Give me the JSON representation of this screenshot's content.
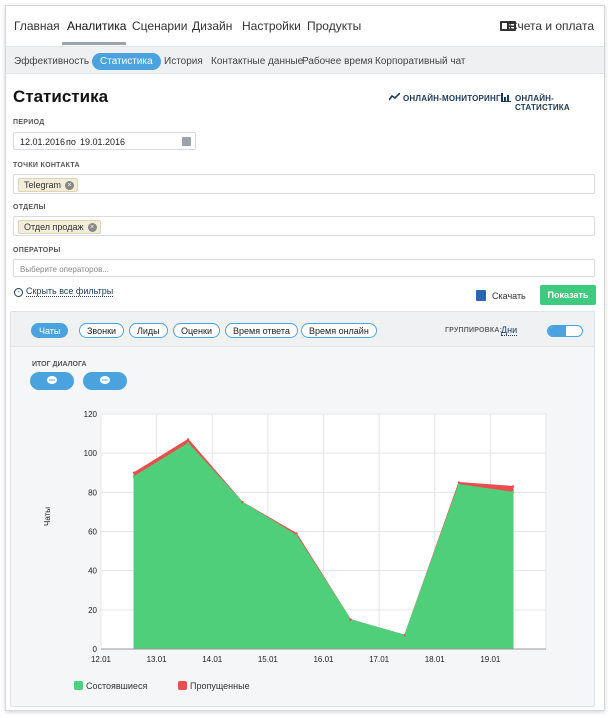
{
  "nav": {
    "items": [
      "Главная",
      "Аналитика",
      "Сценарии",
      "Дизайн",
      "Настройки",
      "Продукты"
    ],
    "active": "Аналитика",
    "billing": "Счета и оплата"
  },
  "subnav": {
    "items": [
      "Эффективность",
      "Статистика",
      "История",
      "Контактные данные",
      "Рабочее время",
      "Корпоративный чат"
    ],
    "active": "Статистика"
  },
  "page": {
    "title": "Статистика",
    "link_monitoring": "ОНЛАЙН-МОНИТОРИНГ",
    "link_stats": "ОНЛАЙН-СТАТИСТИКА"
  },
  "filters": {
    "period_label": "ПЕРИОД",
    "period_from": "12.01.2016",
    "period_to_prefix": "по",
    "period_to": "19.01.2016",
    "contacts_label": "ТОЧКИ КОНТАКТА",
    "contacts_tag": "Telegram",
    "departments_label": "ОТДЕЛЫ",
    "departments_tag": "Отдел продаж",
    "operators_label": "ОПЕРАТОРЫ",
    "operators_placeholder": "Выберите операторов...",
    "hide_filters": "Скрыть все фильтры",
    "download": "Скачать",
    "show": "Показать"
  },
  "panel": {
    "tabs": [
      "Чаты",
      "Звонки",
      "Лиды",
      "Оценки",
      "Время ответа",
      "Время онлайн"
    ],
    "active_tab": "Чаты",
    "grouping_label": "ГРУППИРОВКА:",
    "grouping_value": "Дни",
    "dialog_label": "ИТОГ ДИАЛОГА"
  },
  "chart_data": {
    "type": "area",
    "x": [
      "12.01",
      "13.01",
      "14.01",
      "15.01",
      "16.01",
      "17.01",
      "18.01",
      "19.01"
    ],
    "ylabel": "Чаты",
    "ylim": [
      0,
      120
    ],
    "yticks": [
      0,
      20,
      40,
      60,
      80,
      100,
      120
    ],
    "stacked": true,
    "grid": true,
    "legend_position": "bottom-left",
    "series": [
      {
        "name": "Состоявшиеся",
        "color": "#50cf7b",
        "values": [
          88,
          105,
          75,
          58,
          15,
          7,
          84,
          80
        ]
      },
      {
        "name": "Пропущенные",
        "color": "#e94d4d",
        "values": [
          2,
          2,
          0,
          1,
          0,
          0,
          1,
          3
        ]
      }
    ]
  }
}
